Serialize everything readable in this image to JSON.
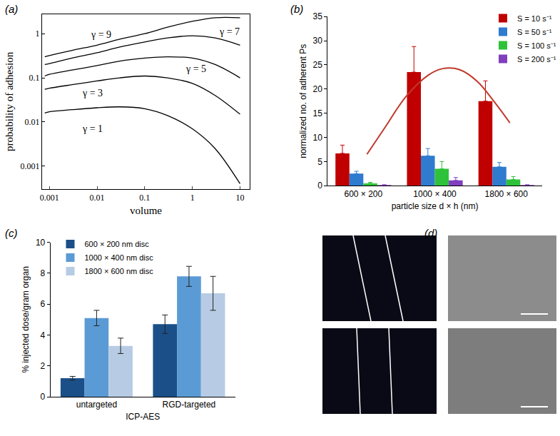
{
  "chart_data": [
    {
      "type": "line",
      "title": "(a)",
      "x_label": "volume",
      "y_label": "probability of adhesion",
      "log": true,
      "grid": false,
      "x": [
        0.0008,
        0.001,
        0.003,
        0.01,
        0.03,
        0.1,
        0.3,
        1,
        3,
        10
      ],
      "series": [
        {
          "color": "#000000",
          "values": [
            0.3,
            0.32,
            0.42,
            0.55,
            0.75,
            1.0,
            1.4,
            1.9,
            2.3,
            2.3
          ]
        },
        {
          "color": "#000000",
          "values": [
            0.2,
            0.21,
            0.28,
            0.37,
            0.5,
            0.65,
            0.8,
            0.9,
            0.8,
            0.55
          ]
        },
        {
          "color": "#000000",
          "values": [
            0.11,
            0.12,
            0.15,
            0.19,
            0.24,
            0.28,
            0.3,
            0.28,
            0.2,
            0.1
          ]
        },
        {
          "color": "#000000",
          "values": [
            0.055,
            0.058,
            0.07,
            0.085,
            0.1,
            0.11,
            0.1,
            0.075,
            0.04,
            0.015
          ]
        },
        {
          "color": "#000000",
          "values": [
            0.016,
            0.017,
            0.019,
            0.021,
            0.022,
            0.02,
            0.014,
            0.007,
            0.0025,
            0.0004
          ]
        }
      ],
      "annotations": [
        {
          "text": "γ = 9",
          "x": 0.012,
          "y": 0.95
        },
        {
          "text": "γ = 7",
          "x": 6,
          "y": 1.1
        },
        {
          "text": "γ = 5",
          "x": 1.2,
          "y": 0.16
        },
        {
          "text": "γ = 3",
          "x": 0.008,
          "y": 0.045
        },
        {
          "text": "γ = 1",
          "x": 0.008,
          "y": 0.007
        }
      ],
      "xlim": [
        0.0007,
        16
      ],
      "ylim": [
        0.0003,
        2.8
      ],
      "xticks": [
        0.001,
        0.01,
        0.1,
        1,
        10
      ],
      "yticks": [
        0.001,
        0.01,
        0.1,
        1
      ]
    },
    {
      "type": "bar",
      "title": "(b)",
      "x_label": "particle size d × h (nm)",
      "y_label": "normalized no. of adherent Ps",
      "grid": false,
      "legend": "top right",
      "categories": [
        "600 × 200",
        "1000 × 400",
        "1800 × 600"
      ],
      "series": [
        {
          "name": "S = 10 s⁻¹",
          "color": "#c00000",
          "values": [
            6.7,
            23.5,
            17.5
          ],
          "error_up": [
            1.7,
            5.3,
            4.2
          ]
        },
        {
          "name": "S = 50 s⁻¹",
          "color": "#2e7bcf",
          "values": [
            2.5,
            6.2,
            3.9
          ],
          "error_up": [
            0.5,
            1.5,
            0.9
          ]
        },
        {
          "name": "S = 100 s⁻¹",
          "color": "#2ec23a",
          "values": [
            0.5,
            3.5,
            1.3
          ],
          "error_up": [
            0.2,
            1.5,
            0.6
          ]
        },
        {
          "name": "S = 200 s⁻¹",
          "color": "#7f3fbf",
          "values": [
            0.15,
            1.1,
            0.15
          ],
          "error_up": [
            0.05,
            0.6,
            0.05
          ]
        },
        {
          "type": "line",
          "color": "#c0392b",
          "x": [
            0.05,
            0.3,
            0.6,
            0.9,
            1.1,
            1.35,
            1.6,
            1.85,
            2.05
          ],
          "values": [
            6.5,
            12,
            18.5,
            22.8,
            24.2,
            24,
            21.5,
            17,
            13
          ]
        }
      ],
      "ylim": [
        0,
        35
      ],
      "yticks": [
        0,
        5,
        10,
        15,
        20,
        25,
        30,
        35
      ]
    },
    {
      "type": "bar",
      "title": "(c)",
      "x_label": "ICP-AES",
      "y_label": "% injected dose/gram organ",
      "grid": false,
      "legend": "top left",
      "categories": [
        "untargeted",
        "RGD-targeted"
      ],
      "series": [
        {
          "name": "600 × 200 nm disc",
          "color": "#1b4f87",
          "values": [
            1.2,
            4.7
          ],
          "errors": [
            0.12,
            0.6
          ]
        },
        {
          "name": "1000 × 400 nm disc",
          "color": "#5b9bd5",
          "values": [
            5.1,
            7.8
          ],
          "errors": [
            0.5,
            0.65
          ]
        },
        {
          "name": "1800 × 600 nm disc",
          "color": "#b7cce4",
          "values": [
            3.3,
            6.7
          ],
          "errors": [
            0.5,
            1.1
          ]
        }
      ],
      "ylim": [
        0,
        10
      ],
      "yticks": [
        0,
        2,
        4,
        6,
        8,
        10
      ]
    },
    {
      "type": "image",
      "title": "(d)"
    }
  ]
}
